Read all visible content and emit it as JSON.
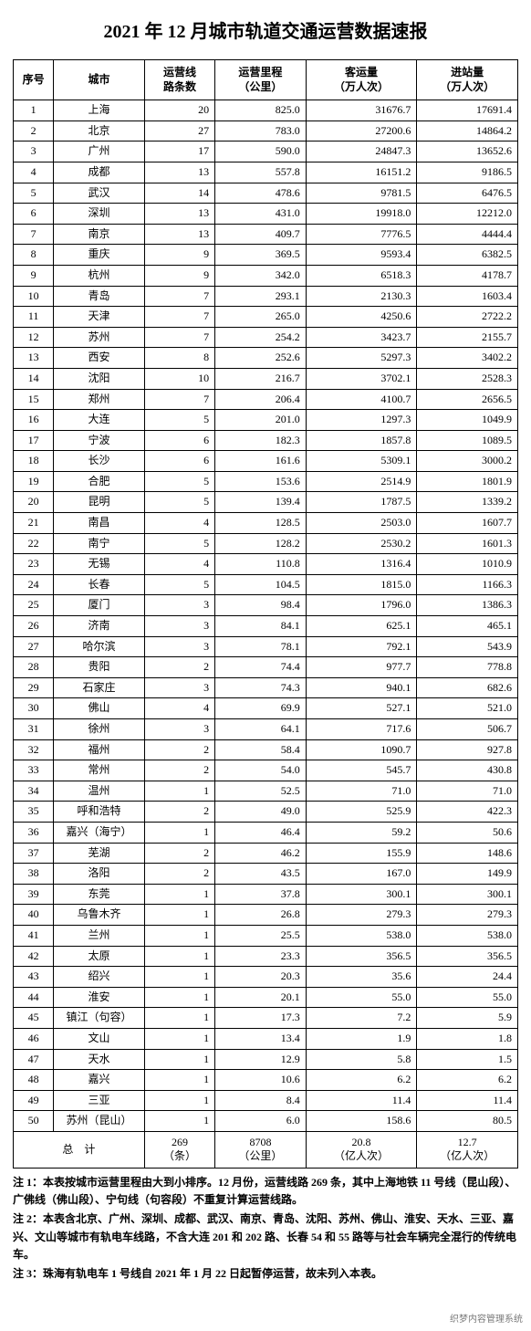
{
  "title": "2021 年 12 月城市轨道交通运营数据速报",
  "columns": {
    "idx": "序号",
    "city": "城市",
    "lines": "运营线\n路条数",
    "km": "运营里程\n（公里）",
    "pax": "客运量\n（万人次）",
    "in": "进站量\n（万人次）"
  },
  "rows": [
    {
      "idx": "1",
      "city": "上海",
      "lines": "20",
      "km": "825.0",
      "pax": "31676.7",
      "in": "17691.4"
    },
    {
      "idx": "2",
      "city": "北京",
      "lines": "27",
      "km": "783.0",
      "pax": "27200.6",
      "in": "14864.2"
    },
    {
      "idx": "3",
      "city": "广州",
      "lines": "17",
      "km": "590.0",
      "pax": "24847.3",
      "in": "13652.6"
    },
    {
      "idx": "4",
      "city": "成都",
      "lines": "13",
      "km": "557.8",
      "pax": "16151.2",
      "in": "9186.5"
    },
    {
      "idx": "5",
      "city": "武汉",
      "lines": "14",
      "km": "478.6",
      "pax": "9781.5",
      "in": "6476.5"
    },
    {
      "idx": "6",
      "city": "深圳",
      "lines": "13",
      "km": "431.0",
      "pax": "19918.0",
      "in": "12212.0"
    },
    {
      "idx": "7",
      "city": "南京",
      "lines": "13",
      "km": "409.7",
      "pax": "7776.5",
      "in": "4444.4"
    },
    {
      "idx": "8",
      "city": "重庆",
      "lines": "9",
      "km": "369.5",
      "pax": "9593.4",
      "in": "6382.5"
    },
    {
      "idx": "9",
      "city": "杭州",
      "lines": "9",
      "km": "342.0",
      "pax": "6518.3",
      "in": "4178.7"
    },
    {
      "idx": "10",
      "city": "青岛",
      "lines": "7",
      "km": "293.1",
      "pax": "2130.3",
      "in": "1603.4"
    },
    {
      "idx": "11",
      "city": "天津",
      "lines": "7",
      "km": "265.0",
      "pax": "4250.6",
      "in": "2722.2"
    },
    {
      "idx": "12",
      "city": "苏州",
      "lines": "7",
      "km": "254.2",
      "pax": "3423.7",
      "in": "2155.7"
    },
    {
      "idx": "13",
      "city": "西安",
      "lines": "8",
      "km": "252.6",
      "pax": "5297.3",
      "in": "3402.2"
    },
    {
      "idx": "14",
      "city": "沈阳",
      "lines": "10",
      "km": "216.7",
      "pax": "3702.1",
      "in": "2528.3"
    },
    {
      "idx": "15",
      "city": "郑州",
      "lines": "7",
      "km": "206.4",
      "pax": "4100.7",
      "in": "2656.5"
    },
    {
      "idx": "16",
      "city": "大连",
      "lines": "5",
      "km": "201.0",
      "pax": "1297.3",
      "in": "1049.9"
    },
    {
      "idx": "17",
      "city": "宁波",
      "lines": "6",
      "km": "182.3",
      "pax": "1857.8",
      "in": "1089.5"
    },
    {
      "idx": "18",
      "city": "长沙",
      "lines": "6",
      "km": "161.6",
      "pax": "5309.1",
      "in": "3000.2"
    },
    {
      "idx": "19",
      "city": "合肥",
      "lines": "5",
      "km": "153.6",
      "pax": "2514.9",
      "in": "1801.9"
    },
    {
      "idx": "20",
      "city": "昆明",
      "lines": "5",
      "km": "139.4",
      "pax": "1787.5",
      "in": "1339.2"
    },
    {
      "idx": "21",
      "city": "南昌",
      "lines": "4",
      "km": "128.5",
      "pax": "2503.0",
      "in": "1607.7"
    },
    {
      "idx": "22",
      "city": "南宁",
      "lines": "5",
      "km": "128.2",
      "pax": "2530.2",
      "in": "1601.3"
    },
    {
      "idx": "23",
      "city": "无锡",
      "lines": "4",
      "km": "110.8",
      "pax": "1316.4",
      "in": "1010.9"
    },
    {
      "idx": "24",
      "city": "长春",
      "lines": "5",
      "km": "104.5",
      "pax": "1815.0",
      "in": "1166.3"
    },
    {
      "idx": "25",
      "city": "厦门",
      "lines": "3",
      "km": "98.4",
      "pax": "1796.0",
      "in": "1386.3"
    },
    {
      "idx": "26",
      "city": "济南",
      "lines": "3",
      "km": "84.1",
      "pax": "625.1",
      "in": "465.1"
    },
    {
      "idx": "27",
      "city": "哈尔滨",
      "lines": "3",
      "km": "78.1",
      "pax": "792.1",
      "in": "543.9"
    },
    {
      "idx": "28",
      "city": "贵阳",
      "lines": "2",
      "km": "74.4",
      "pax": "977.7",
      "in": "778.8"
    },
    {
      "idx": "29",
      "city": "石家庄",
      "lines": "3",
      "km": "74.3",
      "pax": "940.1",
      "in": "682.6"
    },
    {
      "idx": "30",
      "city": "佛山",
      "lines": "4",
      "km": "69.9",
      "pax": "527.1",
      "in": "521.0"
    },
    {
      "idx": "31",
      "city": "徐州",
      "lines": "3",
      "km": "64.1",
      "pax": "717.6",
      "in": "506.7"
    },
    {
      "idx": "32",
      "city": "福州",
      "lines": "2",
      "km": "58.4",
      "pax": "1090.7",
      "in": "927.8"
    },
    {
      "idx": "33",
      "city": "常州",
      "lines": "2",
      "km": "54.0",
      "pax": "545.7",
      "in": "430.8"
    },
    {
      "idx": "34",
      "city": "温州",
      "lines": "1",
      "km": "52.5",
      "pax": "71.0",
      "in": "71.0"
    },
    {
      "idx": "35",
      "city": "呼和浩特",
      "lines": "2",
      "km": "49.0",
      "pax": "525.9",
      "in": "422.3"
    },
    {
      "idx": "36",
      "city": "嘉兴（海宁）",
      "lines": "1",
      "km": "46.4",
      "pax": "59.2",
      "in": "50.6"
    },
    {
      "idx": "37",
      "city": "芜湖",
      "lines": "2",
      "km": "46.2",
      "pax": "155.9",
      "in": "148.6"
    },
    {
      "idx": "38",
      "city": "洛阳",
      "lines": "2",
      "km": "43.5",
      "pax": "167.0",
      "in": "149.9"
    },
    {
      "idx": "39",
      "city": "东莞",
      "lines": "1",
      "km": "37.8",
      "pax": "300.1",
      "in": "300.1"
    },
    {
      "idx": "40",
      "city": "乌鲁木齐",
      "lines": "1",
      "km": "26.8",
      "pax": "279.3",
      "in": "279.3"
    },
    {
      "idx": "41",
      "city": "兰州",
      "lines": "1",
      "km": "25.5",
      "pax": "538.0",
      "in": "538.0"
    },
    {
      "idx": "42",
      "city": "太原",
      "lines": "1",
      "km": "23.3",
      "pax": "356.5",
      "in": "356.5"
    },
    {
      "idx": "43",
      "city": "绍兴",
      "lines": "1",
      "km": "20.3",
      "pax": "35.6",
      "in": "24.4"
    },
    {
      "idx": "44",
      "city": "淮安",
      "lines": "1",
      "km": "20.1",
      "pax": "55.0",
      "in": "55.0"
    },
    {
      "idx": "45",
      "city": "镇江（句容）",
      "lines": "1",
      "km": "17.3",
      "pax": "7.2",
      "in": "5.9"
    },
    {
      "idx": "46",
      "city": "文山",
      "lines": "1",
      "km": "13.4",
      "pax": "1.9",
      "in": "1.8"
    },
    {
      "idx": "47",
      "city": "天水",
      "lines": "1",
      "km": "12.9",
      "pax": "5.8",
      "in": "1.5"
    },
    {
      "idx": "48",
      "city": "嘉兴",
      "lines": "1",
      "km": "10.6",
      "pax": "6.2",
      "in": "6.2"
    },
    {
      "idx": "49",
      "city": "三亚",
      "lines": "1",
      "km": "8.4",
      "pax": "11.4",
      "in": "11.4"
    },
    {
      "idx": "50",
      "city": "苏州（昆山）",
      "lines": "1",
      "km": "6.0",
      "pax": "158.6",
      "in": "80.5"
    }
  ],
  "total": {
    "label": "总　计",
    "lines": "269",
    "lines_unit": "（条）",
    "km": "8708",
    "km_unit": "（公里）",
    "pax": "20.8",
    "pax_unit": "（亿人次）",
    "in": "12.7",
    "in_unit": "（亿人次）"
  },
  "notes": [
    "注 1：本表按城市运营里程由大到小排序。12 月份，运营线路 269 条，其中上海地铁 11 号线（昆山段）、广佛线（佛山段）、宁句线（句容段）不重复计算运营线路。",
    "注 2：本表含北京、广州、深圳、成都、武汉、南京、青岛、沈阳、苏州、佛山、淮安、天水、三亚、嘉兴、文山等城市有轨电车线路，不含大连 201 和 202 路、长春 54 和 55 路等与社会车辆完全混行的传统电车。",
    "注 3：珠海有轨电车 1 号线自 2021 年 1 月 22 日起暂停运营，故未列入本表。"
  ],
  "watermark": "织梦内容管理系统"
}
